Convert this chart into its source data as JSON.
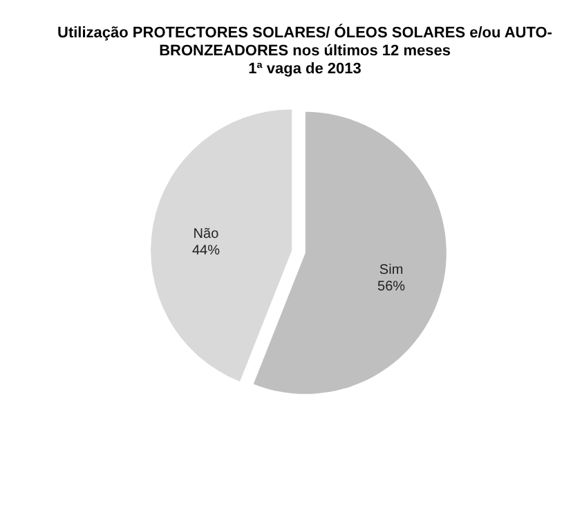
{
  "chart_data": {
    "type": "pie",
    "title": "Utilização PROTECTORES SOLARES/ ÓLEOS SOLARES e/ou AUTO-\nBRONZEADORES nos últimos 12 meses\n1ª vaga de 2013",
    "categories": [
      "Sim",
      "Não"
    ],
    "values": [
      56,
      44
    ],
    "colors": [
      "#bfbfbf",
      "#d9d9d9"
    ],
    "value_labels": [
      "56%",
      "44%"
    ]
  }
}
